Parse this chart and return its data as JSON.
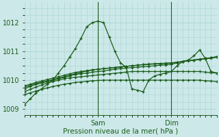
{
  "title": "Pression niveau de la mer( hPa )",
  "bg_color": "#cce8e8",
  "grid_color": "#aad4d4",
  "line_color": "#1a5c1a",
  "ylim": [
    1008.8,
    1012.7
  ],
  "yticks": [
    1009,
    1010,
    1011,
    1012
  ],
  "xlim": [
    0,
    34
  ],
  "sam_x": 13,
  "dim_x": 26,
  "series": [
    [
      1009.15,
      1009.35,
      1009.55,
      1009.7,
      1009.85,
      1010.0,
      1010.25,
      1010.5,
      1010.8,
      1011.1,
      1011.45,
      1011.85,
      1012.0,
      1012.05,
      1012.0,
      1011.5,
      1011.0,
      1010.6,
      1010.45,
      1009.7,
      1009.65,
      1009.6,
      1010.0,
      1010.15,
      1010.2,
      1010.25,
      1010.3,
      1010.5,
      1010.65,
      1010.7,
      1010.85,
      1011.05,
      1010.75,
      1010.3,
      1010.25
    ],
    [
      1009.7,
      1009.78,
      1009.85,
      1009.9,
      1009.95,
      1010.0,
      1010.05,
      1010.1,
      1010.15,
      1010.2,
      1010.22,
      1010.25,
      1010.28,
      1010.3,
      1010.32,
      1010.35,
      1010.38,
      1010.4,
      1010.42,
      1010.44,
      1010.45,
      1010.47,
      1010.48,
      1010.5,
      1010.52,
      1010.53,
      1010.55,
      1010.6,
      1010.65,
      1010.68,
      1010.7,
      1010.72,
      1010.75,
      1010.78,
      1010.8
    ],
    [
      1009.75,
      1009.82,
      1009.88,
      1009.93,
      1009.97,
      1010.02,
      1010.07,
      1010.12,
      1010.17,
      1010.22,
      1010.27,
      1010.32,
      1010.35,
      1010.38,
      1010.4,
      1010.42,
      1010.44,
      1010.46,
      1010.48,
      1010.5,
      1010.52,
      1010.54,
      1010.55,
      1010.56,
      1010.57,
      1010.58,
      1010.6,
      1010.62,
      1010.65,
      1010.68,
      1010.7,
      1010.73,
      1010.75,
      1010.78,
      1010.82
    ],
    [
      1009.8,
      1009.86,
      1009.92,
      1009.97,
      1010.02,
      1010.07,
      1010.12,
      1010.17,
      1010.22,
      1010.27,
      1010.3,
      1010.33,
      1010.36,
      1010.38,
      1010.4,
      1010.42,
      1010.44,
      1010.46,
      1010.48,
      1010.5,
      1010.52,
      1010.54,
      1010.56,
      1010.57,
      1010.58,
      1010.59,
      1010.6,
      1010.62,
      1010.65,
      1010.67,
      1010.69,
      1010.72,
      1010.74,
      1010.76,
      1010.8
    ],
    [
      1009.6,
      1009.68,
      1009.76,
      1009.83,
      1009.9,
      1009.95,
      1010.0,
      1010.05,
      1010.08,
      1010.1,
      1010.12,
      1010.14,
      1010.16,
      1010.18,
      1010.2,
      1010.22,
      1010.24,
      1010.26,
      1010.28,
      1010.3,
      1010.3,
      1010.3,
      1010.3,
      1010.3,
      1010.3,
      1010.3,
      1010.3,
      1010.3,
      1010.3,
      1010.3,
      1010.3,
      1010.3,
      1010.28,
      1010.26,
      1010.25
    ],
    [
      1009.5,
      1009.56,
      1009.62,
      1009.68,
      1009.73,
      1009.78,
      1009.82,
      1009.86,
      1009.89,
      1009.92,
      1009.94,
      1009.96,
      1009.98,
      1009.99,
      1010.0,
      1010.0,
      1010.0,
      1010.0,
      1010.0,
      1010.0,
      1010.0,
      1010.0,
      1010.0,
      1010.0,
      1010.0,
      1010.0,
      1010.0,
      1010.0,
      1010.0,
      1010.0,
      1010.0,
      1010.0,
      1009.98,
      1009.97,
      1009.95
    ]
  ]
}
